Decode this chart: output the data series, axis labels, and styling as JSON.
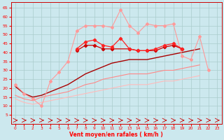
{
  "xlabel": "Vent moyen/en rafales ( km/h )",
  "bg_color": "#cce8ee",
  "grid_color": "#aacccc",
  "x_values": [
    0,
    1,
    2,
    3,
    4,
    5,
    6,
    7,
    8,
    9,
    10,
    11,
    12,
    13,
    14,
    15,
    16,
    17,
    18,
    19,
    20,
    21,
    22,
    23
  ],
  "ylim": [
    0,
    68
  ],
  "yticks": [
    5,
    10,
    15,
    20,
    25,
    30,
    35,
    40,
    45,
    50,
    55,
    60,
    65
  ],
  "line_light_pink": [
    22,
    17,
    14,
    10,
    24,
    29,
    35,
    52,
    55,
    55,
    55,
    54,
    64,
    55,
    51,
    56,
    55,
    55,
    56,
    38,
    36,
    49,
    30,
    null
  ],
  "line_mid_red1": [
    null,
    null,
    null,
    null,
    null,
    null,
    null,
    42,
    46,
    47,
    44,
    43,
    48,
    42,
    41,
    41,
    42,
    44,
    45,
    42,
    null,
    null,
    null,
    null
  ],
  "line_mid_red2": [
    null,
    null,
    null,
    null,
    null,
    null,
    null,
    41,
    44,
    44,
    42,
    42,
    null,
    42,
    41,
    41,
    41,
    43,
    44,
    42,
    null,
    null,
    null,
    null
  ],
  "line_dark_red": [
    21,
    17,
    15,
    16,
    18,
    20,
    22,
    25,
    28,
    30,
    32,
    34,
    35,
    36,
    36,
    36,
    37,
    38,
    39,
    40,
    41,
    42,
    null,
    null
  ],
  "line_lower1": [
    16,
    14,
    13,
    15,
    16,
    17,
    18,
    20,
    22,
    23,
    25,
    26,
    27,
    28,
    28,
    28,
    29,
    30,
    30,
    31,
    32,
    33,
    null,
    null
  ],
  "line_lower2": [
    14,
    12,
    11,
    12,
    13,
    14,
    15,
    16,
    17,
    18,
    19,
    20,
    21,
    22,
    22,
    22,
    23,
    24,
    24,
    25,
    26,
    27,
    null,
    null
  ],
  "color_light_pink": "#ff9999",
  "color_mid_red1": "#ff2222",
  "color_mid_red2": "#cc0000",
  "color_dark_red": "#aa0000",
  "color_lower1": "#ff8888",
  "color_lower2": "#ffbbbb"
}
